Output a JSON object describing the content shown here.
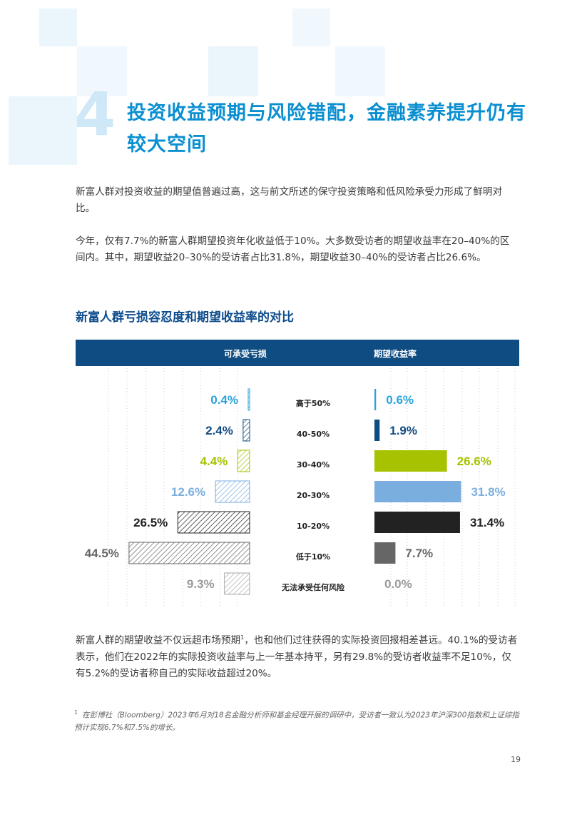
{
  "section": {
    "number": "4",
    "heading": "投资收益预期与风险错配，金融素养提升仍有较大空间"
  },
  "paragraphs": {
    "p1": "新富人群对投资收益的期望值普遍过高，这与前文所述的保守投资策略和低风险承受力形成了鲜明对比。",
    "p2": "今年，仅有7.7%的新富人群期望投资年化收益低于10%。大多数受访者的期望收益率在20–40%的区间内。其中，期望收益20–30%的受访者占比31.8%，期望收益30–40%的受访者占比26.6%。",
    "p3_before": "新富人群的期望收益不仅远超市场预期",
    "p3_sup": "1",
    "p3_after": "，也和他们过往获得的实际投资回报相差甚远。40.1%的受访者表示，他们在2022年的实际投资收益率与上一年基本持平，另有29.8%的受访者收益率不足10%，仅有5.2%的受访者称自己的实际收益超过20%。"
  },
  "chart_title": "新富人群亏损容忍度和期望收益率的对比",
  "chart_data": {
    "type": "bar",
    "title": "新富人群亏损容忍度和期望收益率的对比",
    "categories": [
      "高于50%",
      "40-50%",
      "30-40%",
      "20-30%",
      "10-20%",
      "低于10%",
      "无法承受任何风险"
    ],
    "series": [
      {
        "name": "可承受亏损",
        "values": [
          0.4,
          2.4,
          4.4,
          12.6,
          26.5,
          44.5,
          9.3
        ],
        "labels": [
          "0.4%",
          "2.4%",
          "4.4%",
          "12.6%",
          "26.5%",
          "44.5%",
          "9.3%"
        ]
      },
      {
        "name": "期望收益率",
        "values": [
          0.6,
          1.9,
          26.6,
          31.8,
          31.4,
          7.7,
          0.0
        ],
        "labels": [
          "0.6%",
          "1.9%",
          "26.6%",
          "31.8%",
          "31.4%",
          "7.7%",
          "0.0%"
        ]
      }
    ],
    "colors": [
      "#29a3dc",
      "#0f4c81",
      "#a6c200",
      "#7aaedf",
      "#222222",
      "#666666",
      "#aaaaaa"
    ],
    "label_colors": [
      "#29a3dc",
      "#0f4c81",
      "#a6c200",
      "#7aaedf",
      "#222222",
      "#666666",
      "#9a9a9a"
    ]
  },
  "footnote": {
    "mark": "1",
    "text": "在彭博社（Bloomberg）2023年6月对18名金融分析师和基金经理开展的调研中，受访者一致认为2023年沪深300指数和上证综指预计实现6.7%和7.5%的增长。"
  },
  "page_number": "19"
}
